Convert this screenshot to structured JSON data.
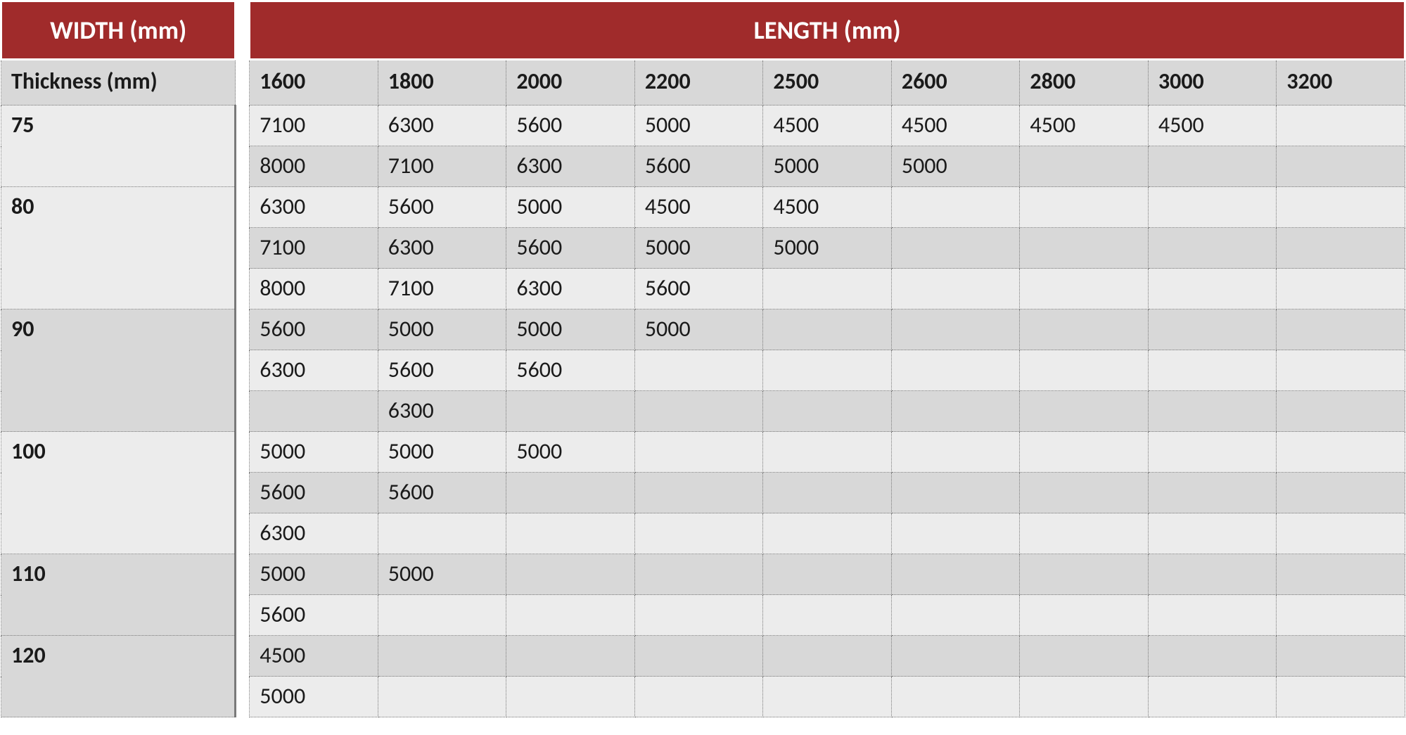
{
  "colors": {
    "header_bg": "#a02b2b",
    "header_fg": "#ffffff",
    "row_a": "#ececec",
    "row_b": "#d8d8d8",
    "border": "#7a7a7a",
    "text": "#1a1a1a"
  },
  "table": {
    "type": "table",
    "top_left_header": "WIDTH (mm)",
    "top_right_header": "LENGTH (mm)",
    "sub_left_header": "Thickness (mm)",
    "length_columns": [
      "1600",
      "1800",
      "2000",
      "2200",
      "2500",
      "2600",
      "2800",
      "3000",
      "3200"
    ],
    "groups": [
      {
        "thickness": "75",
        "rows": [
          [
            "7100",
            "6300",
            "5600",
            "5000",
            "4500",
            "4500",
            "4500",
            "4500",
            ""
          ],
          [
            "8000",
            "7100",
            "6300",
            "5600",
            "5000",
            "5000",
            "",
            "",
            ""
          ]
        ]
      },
      {
        "thickness": "80",
        "rows": [
          [
            "6300",
            "5600",
            "5000",
            "4500",
            "4500",
            "",
            "",
            "",
            ""
          ],
          [
            "7100",
            "6300",
            "5600",
            "5000",
            "5000",
            "",
            "",
            "",
            ""
          ],
          [
            "8000",
            "7100",
            "6300",
            "5600",
            "",
            "",
            "",
            "",
            ""
          ]
        ]
      },
      {
        "thickness": "90",
        "rows": [
          [
            "5600",
            "5000",
            "5000",
            "5000",
            "",
            "",
            "",
            "",
            ""
          ],
          [
            "6300",
            "5600",
            "5600",
            "",
            "",
            "",
            "",
            "",
            ""
          ],
          [
            "",
            "6300",
            "",
            "",
            "",
            "",
            "",
            "",
            ""
          ]
        ]
      },
      {
        "thickness": "100",
        "rows": [
          [
            "5000",
            "5000",
            "5000",
            "",
            "",
            "",
            "",
            "",
            ""
          ],
          [
            "5600",
            "5600",
            "",
            "",
            "",
            "",
            "",
            "",
            ""
          ],
          [
            "6300",
            "",
            "",
            "",
            "",
            "",
            "",
            "",
            ""
          ]
        ]
      },
      {
        "thickness": "110",
        "rows": [
          [
            "5000",
            "5000",
            "",
            "",
            "",
            "",
            "",
            "",
            ""
          ],
          [
            "5600",
            "",
            "",
            "",
            "",
            "",
            "",
            "",
            ""
          ]
        ]
      },
      {
        "thickness": "120",
        "rows": [
          [
            "4500",
            "",
            "",
            "",
            "",
            "",
            "",
            "",
            ""
          ],
          [
            "5000",
            "",
            "",
            "",
            "",
            "",
            "",
            "",
            ""
          ]
        ]
      }
    ]
  }
}
